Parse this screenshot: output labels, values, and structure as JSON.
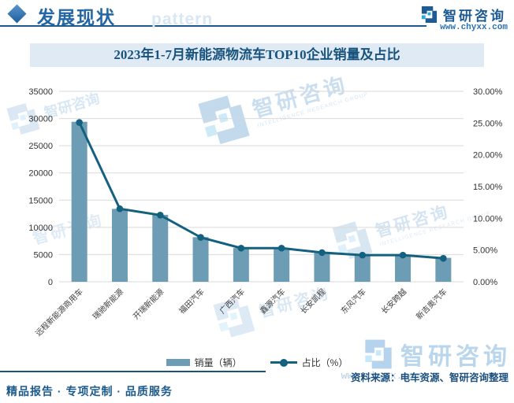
{
  "header": {
    "section_title": "发展现状",
    "watermark_text": "pattern",
    "brand_name": "智研咨询",
    "brand_url": "www.chyxx.com"
  },
  "chart": {
    "title": "2023年1-7月新能源物流车TOP10企业销量及占比"
  },
  "chart_data": {
    "type": "bar+line combo",
    "title": "2023年1-7月新能源物流车TOP10企业销量及占比",
    "categories": [
      "远程新能源商用车",
      "瑞驰新能源",
      "开瑞新能源",
      "福田汽车",
      "广西汽车",
      "鑫源汽车",
      "长安凯程",
      "东风汽车",
      "长安跨越",
      "新吉奥汽车"
    ],
    "series": [
      {
        "name": "销量（辆）",
        "type": "bar",
        "axis": "left",
        "values": [
          29400,
          13400,
          12300,
          8200,
          6200,
          6200,
          5300,
          4900,
          4900,
          4400
        ]
      },
      {
        "name": "占比（%）",
        "type": "line",
        "axis": "right",
        "values": [
          25.1,
          11.5,
          10.5,
          7.0,
          5.3,
          5.3,
          4.6,
          4.2,
          4.2,
          3.7
        ]
      }
    ],
    "left_axis": {
      "min": 0,
      "max": 35000,
      "step": 5000,
      "labels": [
        "0",
        "5000",
        "10000",
        "15000",
        "20000",
        "25000",
        "30000",
        "35000"
      ]
    },
    "right_axis": {
      "min": 0,
      "max": 30,
      "step": 5,
      "labels": [
        "0.00%",
        "5.00%",
        "10.00%",
        "15.00%",
        "20.00%",
        "25.00%",
        "30.00%"
      ]
    },
    "legend_position": "bottom",
    "grid": true,
    "colors": {
      "bar": "#6d9cb5",
      "line": "#14607f",
      "grid": "#d9d9d9",
      "tick_text": "#333333",
      "category_text": "#404040"
    }
  },
  "watermark": {
    "brand": "智研咨询",
    "subtext": "INTELLIGENCE RESEARCH GROUP"
  },
  "footer": {
    "source": "资料来源：电车资源、智研咨询整理",
    "tagline": "精品报告 · 专项定制 · 品质服务",
    "brand_name": "智研咨询",
    "watermark_url": "www.chyxx.com"
  }
}
